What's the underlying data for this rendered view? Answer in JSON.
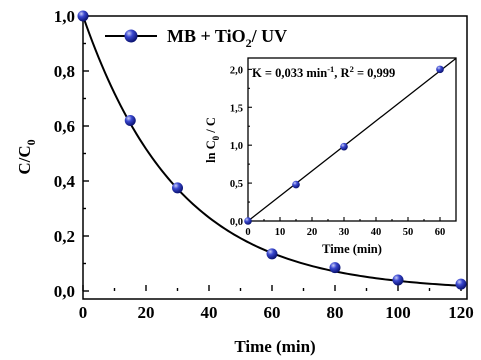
{
  "chart_data": [
    {
      "type": "scatter",
      "xlabel": "Time (min)",
      "ylabel_main": "C/C",
      "ylabel_sub": "0",
      "xlim": [
        0,
        120
      ],
      "ylim": [
        0,
        1.0
      ],
      "xticks": [
        0,
        20,
        40,
        60,
        80,
        100,
        120
      ],
      "xtick_labels": [
        "0",
        "20",
        "40",
        "60",
        "80",
        "100",
        "120"
      ],
      "yticks": [
        0,
        0.2,
        0.4,
        0.6,
        0.8,
        1.0
      ],
      "ytick_labels": [
        "0,0",
        "0,2",
        "0,4",
        "0,6",
        "0,8",
        "1,0"
      ],
      "legend": {
        "position": "top-left",
        "parts": [
          "MB + TiO",
          "2",
          "/ UV"
        ]
      },
      "series": [
        {
          "name": "MB + TiO2/ UV",
          "color": "#1f2db0",
          "x": [
            0,
            15,
            30,
            60,
            80,
            100,
            120
          ],
          "y": [
            1.0,
            0.62,
            0.375,
            0.135,
            0.085,
            0.04,
            0.025
          ]
        }
      ],
      "fit": {
        "type": "exponential decay",
        "k": 0.033,
        "color": "#000000"
      }
    },
    {
      "type": "scatter",
      "xlabel": "Time (min)",
      "ylabel_parts": [
        "ln C",
        "0",
        " / C"
      ],
      "xlim": [
        0,
        65
      ],
      "ylim": [
        0,
        2.15
      ],
      "xticks": [
        0,
        10,
        20,
        30,
        40,
        50,
        60
      ],
      "xtick_labels": [
        "0",
        "10",
        "20",
        "30",
        "40",
        "50",
        "60"
      ],
      "yticks": [
        0,
        0.5,
        1.0,
        1.5,
        2.0
      ],
      "ytick_labels": [
        "0,0",
        "0,5",
        "1,0",
        "1,5",
        "2,0"
      ],
      "annotation": {
        "k_text": "K = 0,033 min",
        "k_sup": "-1",
        "r_text": ", R",
        "r_sup": "2",
        "r_value": " = 0,999"
      },
      "series": [
        {
          "color": "#1f2db0",
          "x": [
            0,
            15,
            30,
            60
          ],
          "y": [
            0.0,
            0.48,
            0.98,
            2.0
          ]
        }
      ],
      "fit": {
        "type": "linear",
        "slope": 0.033,
        "color": "#000000"
      }
    }
  ]
}
